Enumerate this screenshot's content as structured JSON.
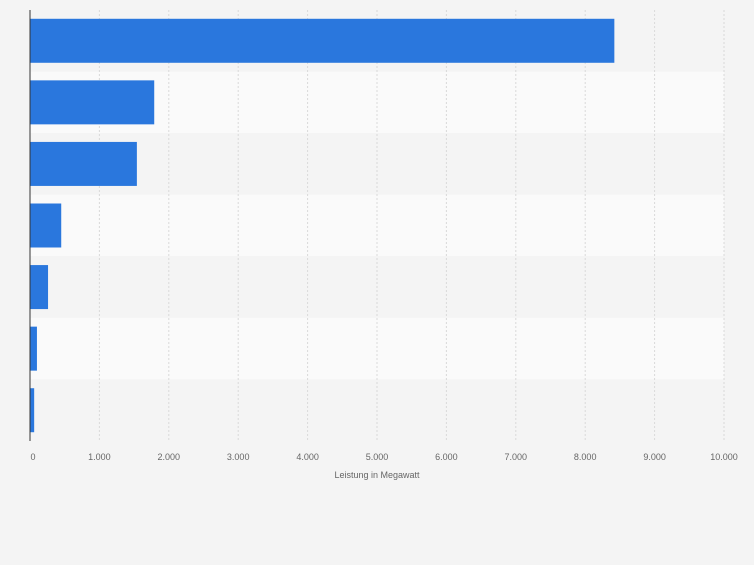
{
  "chart_data": {
    "type": "bar",
    "orientation": "horizontal",
    "categories": [
      "",
      "",
      "",
      "",
      "",
      "",
      ""
    ],
    "values": [
      8420,
      1790,
      1540,
      450,
      260,
      100,
      60
    ],
    "xlabel": "Leistung in Megawatt",
    "ylabel": "",
    "xlim": [
      0,
      10000
    ],
    "xticks": [
      0,
      1000,
      2000,
      3000,
      4000,
      5000,
      6000,
      7000,
      8000,
      9000,
      10000
    ],
    "xtick_labels": [
      "0",
      "1.000",
      "2.000",
      "3.000",
      "4.000",
      "5.000",
      "6.000",
      "7.000",
      "8.000",
      "9.000",
      "10.000"
    ],
    "grid": true,
    "bar_color": "#2a77dd",
    "band_colors": [
      "#f4f4f4",
      "#fafafa"
    ],
    "gridline_color": "#d9d9d9",
    "tick_label_color": "#666666"
  }
}
